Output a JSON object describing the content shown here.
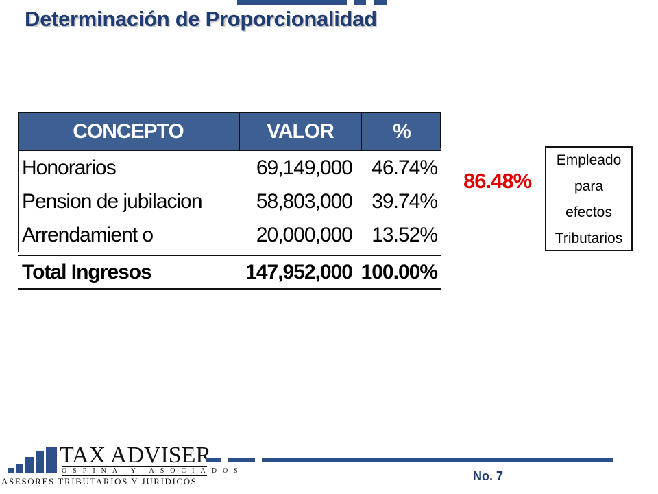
{
  "slide": {
    "title": "Determinación de Proporcionalidad",
    "page_number": "No. 7"
  },
  "table": {
    "headers": [
      "CONCEPTO",
      "VALOR",
      "%"
    ],
    "rows": [
      {
        "concepto": "Honorarios",
        "valor": "69,149,000",
        "pct": "46.74%"
      },
      {
        "concepto": "Pension de jubilacion",
        "valor": "58,803,000",
        "pct": "39.74%"
      },
      {
        "concepto": "Arrendamient o",
        "valor": "20,000,000",
        "pct": "13.52%"
      }
    ],
    "total": {
      "concepto": "Total Ingresos",
      "valor": "147,952,000",
      "pct": "100.00%"
    }
  },
  "callout": {
    "value": "86.48%",
    "box_lines": [
      "Empleado",
      "para",
      "efectos",
      "Tributarios"
    ]
  },
  "logo": {
    "name": "TAX ADVISER",
    "sub": "OSPINA Y ASOCIADOS",
    "tagline": "ASESORES TRIBUTARIOS Y JURIDICOS"
  },
  "colors": {
    "brand_blue": "#2c4f8a",
    "header_blue": "#3d5f92",
    "highlight_red": "#e00000"
  }
}
